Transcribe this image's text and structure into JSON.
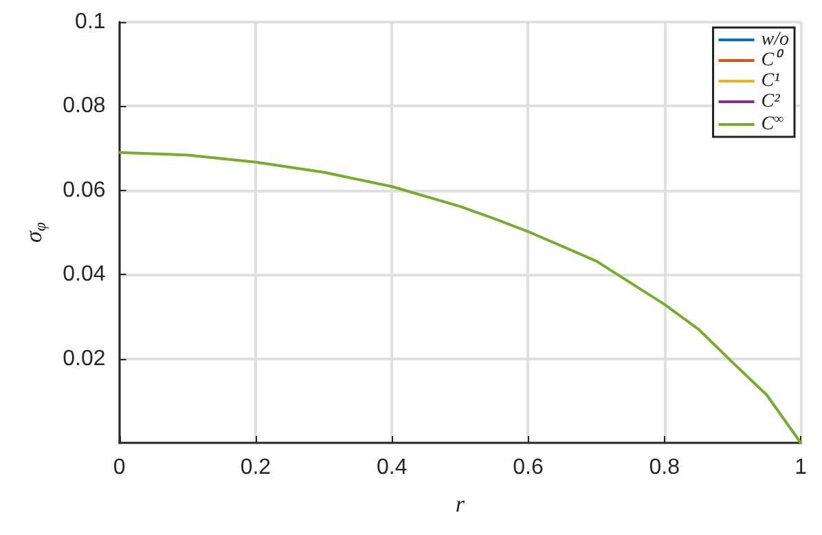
{
  "chart_data": {
    "type": "line",
    "xlabel": "r",
    "ylabel": "σ$_{φ}$",
    "x": [
      0,
      0.1,
      0.2,
      0.3,
      0.4,
      0.5,
      0.55,
      0.6,
      0.7,
      0.8,
      0.85,
      0.9,
      0.95,
      1
    ],
    "series": [
      {
        "name": "w/o",
        "color": "#0072bd",
        "values": [
          null,
          null,
          null,
          null,
          null,
          null,
          null,
          null,
          null,
          null,
          null,
          null,
          null,
          null
        ]
      },
      {
        "name": "C⁰",
        "color": "#d95319",
        "values": [
          null,
          null,
          null,
          null,
          null,
          null,
          null,
          null,
          null,
          null,
          null,
          null,
          null,
          null
        ]
      },
      {
        "name": "C¹",
        "color": "#edb120",
        "values": [
          null,
          null,
          null,
          null,
          null,
          null,
          null,
          null,
          null,
          null,
          null,
          null,
          null,
          null
        ]
      },
      {
        "name": "C²",
        "color": "#7e2f8e",
        "values": [
          null,
          null,
          null,
          null,
          null,
          null,
          null,
          null,
          null,
          null,
          null,
          null,
          null,
          null
        ]
      },
      {
        "name": "C$^{∞}$",
        "color": "#77ac30",
        "values": [
          0.069,
          0.0684,
          0.0667,
          0.0643,
          0.0609,
          0.0562,
          0.0533,
          0.0502,
          0.0432,
          0.0329,
          0.027,
          0.0191,
          0.0114,
          0
        ]
      }
    ],
    "xlim": [
      0,
      1
    ],
    "xticks": [
      0,
      0.2,
      0.4,
      0.6,
      0.8,
      1
    ],
    "ylim": [
      0,
      0.1
    ],
    "yticks": [
      0.02,
      0.04,
      0.06,
      0.08,
      0.1
    ],
    "grid": true,
    "legend": "top right",
    "line_style": "solid",
    "marker": "none"
  }
}
